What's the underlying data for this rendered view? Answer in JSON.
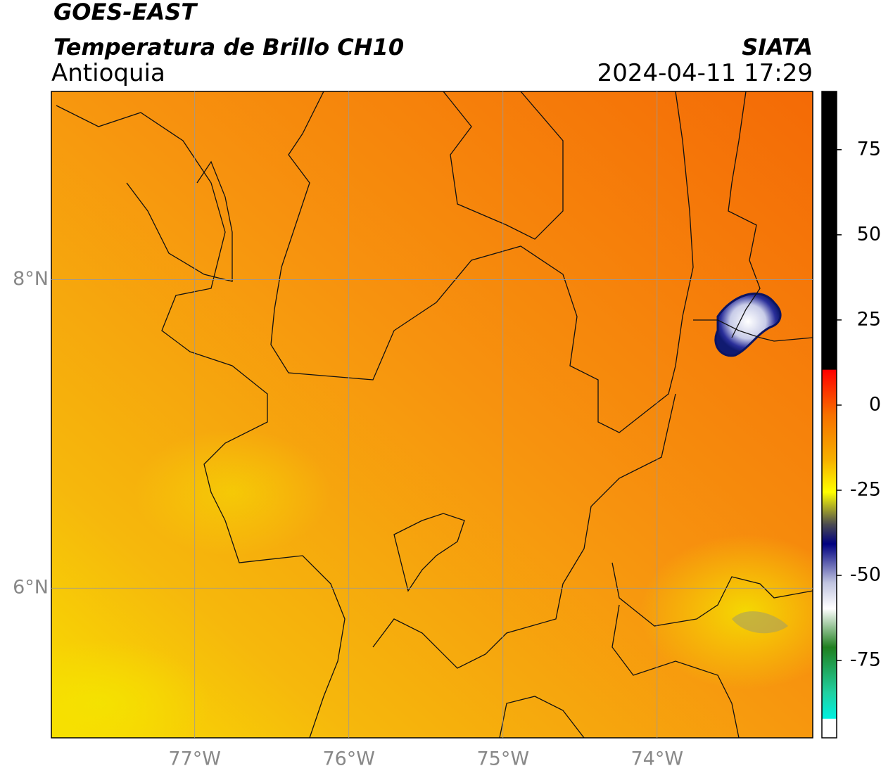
{
  "header": {
    "title": "GOES-EAST",
    "subtitle": "Temperatura de Brillo CH10",
    "region": "Antioquia",
    "source": "SIATA",
    "datetime": "2024-04-11 17:29"
  },
  "map": {
    "xlim": [
      -77.93,
      -72.99
    ],
    "ylim": [
      5.03,
      9.22
    ],
    "xticks": [
      {
        "value": -77,
        "label": "77°W"
      },
      {
        "value": -76,
        "label": "76°W"
      },
      {
        "value": -75,
        "label": "75°W"
      },
      {
        "value": -74,
        "label": "74°W"
      }
    ],
    "yticks": [
      {
        "value": 6,
        "label": "6°N"
      },
      {
        "value": 8,
        "label": "8°N"
      }
    ],
    "grid": true
  },
  "colorbar": {
    "lim": [
      -97.7,
      92.1
    ],
    "ticks": [
      75,
      50,
      25,
      0,
      -25,
      -50,
      -75
    ]
  }
}
